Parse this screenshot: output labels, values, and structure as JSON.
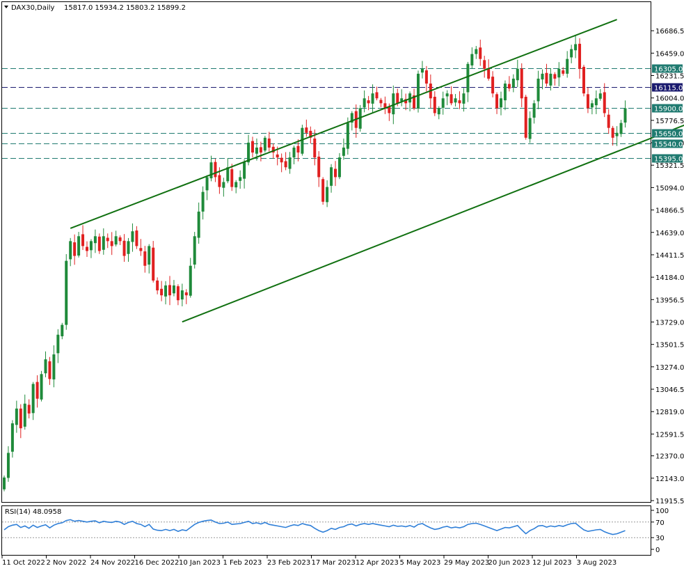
{
  "header": {
    "symbol": "DAX30,Daily",
    "ohlc": "15817.0 15934.2 15803.2 15899.2"
  },
  "rsi_label": "RSI(14) 48.0958",
  "colors": {
    "up": "#1f8a3a",
    "down": "#e02020",
    "trend": "#107010",
    "hline": "#1f7a70",
    "hline_dark": "#1a1a6e",
    "rsi": "#2f7fd8"
  },
  "chart_data": {
    "type": "candlestick",
    "ylim": [
      11915.5,
      16786.5
    ],
    "price_ticks": [
      "16686.5",
      "16459.0",
      "16231.5",
      "16004.0",
      "15776.5",
      "15549.0",
      "15321.5",
      "15094.0",
      "14866.5",
      "14639.0",
      "14411.5",
      "14184.0",
      "13956.5",
      "13729.0",
      "13501.5",
      "13274.0",
      "13046.5",
      "12819.0",
      "12591.5",
      "12370.0",
      "12143.0",
      "11915.5"
    ],
    "x_labels": [
      "11 Oct 2022",
      "2 Nov 2022",
      "24 Nov 2022",
      "16 Dec 2022",
      "10 Jan 2023",
      "1 Feb 2023",
      "23 Feb 2023",
      "17 Mar 2023",
      "12 Apr 2023",
      "5 May 2023",
      "29 May 2023",
      "20 Jun 2023",
      "12 Jul 2023",
      "3 Aug 2023"
    ],
    "horizontal_levels": [
      {
        "value": 16305.0,
        "label": "16305.0",
        "style": "teal"
      },
      {
        "value": 16115.0,
        "label": "16115.0",
        "style": "navy"
      },
      {
        "value": 15900.0,
        "label": "15900.0",
        "style": "teal"
      },
      {
        "value": 15650.0,
        "label": "15650.0",
        "style": "teal"
      },
      {
        "value": 15540.0,
        "label": "15540.0",
        "style": "teal"
      },
      {
        "value": 15395.0,
        "label": "15395.0",
        "style": "teal"
      }
    ],
    "trendlines": [
      {
        "name": "upper-channel",
        "from": {
          "bar": 16,
          "price": 14680
        },
        "to": {
          "bar": 148,
          "price": 16800
        }
      },
      {
        "name": "lower-channel",
        "from": {
          "bar": 43,
          "price": 13730
        },
        "to": {
          "bar": 196,
          "price": 16250
        }
      }
    ],
    "closes": [
      12150,
      12400,
      12700,
      12850,
      12650,
      12900,
      12800,
      13100,
      12950,
      13200,
      13350,
      13150,
      13400,
      13600,
      13700,
      14350,
      14550,
      14400,
      14600,
      14500,
      14450,
      14550,
      14600,
      14450,
      14600,
      14550,
      14500,
      14600,
      14550,
      14400,
      14550,
      14650,
      14500,
      14450,
      14300,
      14500,
      14150,
      14050,
      14000,
      14100,
      14000,
      14100,
      13950,
      14050,
      14000,
      14300,
      14600,
      14850,
      15050,
      15200,
      15350,
      15200,
      15100,
      15150,
      15300,
      15100,
      15150,
      15200,
      15350,
      15550,
      15450,
      15500,
      15450,
      15600,
      15500,
      15450,
      15400,
      15350,
      15300,
      15400,
      15500,
      15450,
      15700,
      15650,
      15600,
      15400,
      15200,
      14950,
      15100,
      15300,
      15200,
      15400,
      15500,
      15750,
      15850,
      15700,
      15900,
      16000,
      15950,
      16050,
      16000,
      15950,
      15900,
      15850,
      16050,
      15950,
      16000,
      15950,
      16050,
      15900,
      16250,
      16300,
      16150,
      16000,
      15850,
      15900,
      16000,
      16050,
      15950,
      16000,
      15950,
      16050,
      16350,
      16450,
      16500,
      16400,
      16300,
      16200,
      16050,
      15900,
      16000,
      16150,
      16100,
      16200,
      16300,
      16000,
      15600,
      15800,
      15950,
      16200,
      16250,
      16150,
      16250,
      16200,
      16300,
      16250,
      16400,
      16500,
      16550,
      16300,
      16050,
      15900,
      15950,
      16000,
      16050,
      15850,
      15700,
      15600,
      15650,
      15750,
      15899.2
    ],
    "rsi": {
      "ylim": [
        0,
        100
      ],
      "ticks": [
        "100",
        "70",
        "30",
        "0"
      ],
      "levels": [
        70,
        30
      ],
      "values": [
        50,
        58,
        62,
        64,
        56,
        60,
        54,
        62,
        56,
        60,
        63,
        55,
        62,
        66,
        68,
        74,
        76,
        72,
        74,
        72,
        70,
        72,
        73,
        68,
        72,
        70,
        69,
        72,
        70,
        64,
        69,
        72,
        66,
        64,
        58,
        64,
        52,
        49,
        48,
        51,
        48,
        51,
        46,
        50,
        48,
        56,
        64,
        69,
        72,
        74,
        75,
        70,
        66,
        67,
        70,
        64,
        65,
        66,
        69,
        72,
        66,
        68,
        65,
        69,
        64,
        62,
        60,
        58,
        56,
        60,
        63,
        61,
        66,
        63,
        61,
        54,
        48,
        44,
        48,
        54,
        51,
        56,
        58,
        63,
        65,
        60,
        64,
        66,
        64,
        66,
        64,
        62,
        60,
        58,
        62,
        59,
        60,
        58,
        61,
        57,
        64,
        66,
        60,
        55,
        51,
        53,
        57,
        59,
        55,
        57,
        55,
        58,
        64,
        66,
        67,
        64,
        60,
        56,
        52,
        48,
        52,
        56,
        55,
        58,
        61,
        50,
        40,
        48,
        53,
        60,
        61,
        57,
        60,
        58,
        61,
        59,
        63,
        66,
        67,
        58,
        50,
        46,
        48,
        50,
        51,
        45,
        41,
        38,
        40,
        44,
        48.1
      ]
    }
  }
}
